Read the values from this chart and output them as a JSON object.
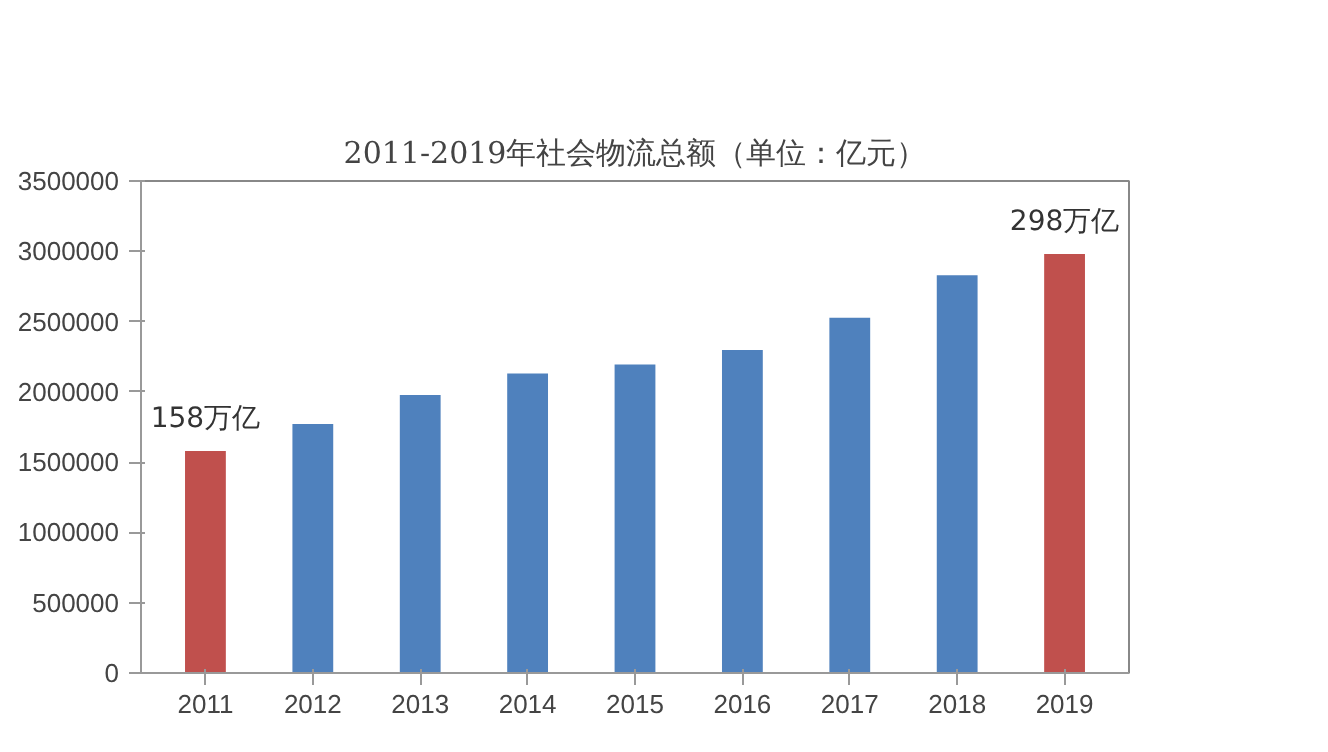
{
  "chart_data": {
    "type": "bar",
    "title": "2011-2019年社会物流总额（单位：亿元）",
    "categories": [
      "2011",
      "2012",
      "2013",
      "2014",
      "2015",
      "2016",
      "2017",
      "2018",
      "2019"
    ],
    "values": [
      1580000,
      1772000,
      1978000,
      2130000,
      2195000,
      2298000,
      2528000,
      2830000,
      2980000
    ],
    "colors": [
      "#c0504d",
      "#4f81bd",
      "#4f81bd",
      "#4f81bd",
      "#4f81bd",
      "#4f81bd",
      "#4f81bd",
      "#4f81bd",
      "#c0504d"
    ],
    "ylim": [
      0,
      3500000
    ],
    "yticks": [
      0,
      500000,
      1000000,
      1500000,
      2000000,
      2500000,
      3000000,
      3500000
    ],
    "grid": false,
    "annotations": [
      {
        "text": "158万亿",
        "x": "2011",
        "y": 1580000
      },
      {
        "text": "298万亿",
        "x": "2019",
        "y": 2980000
      }
    ]
  }
}
